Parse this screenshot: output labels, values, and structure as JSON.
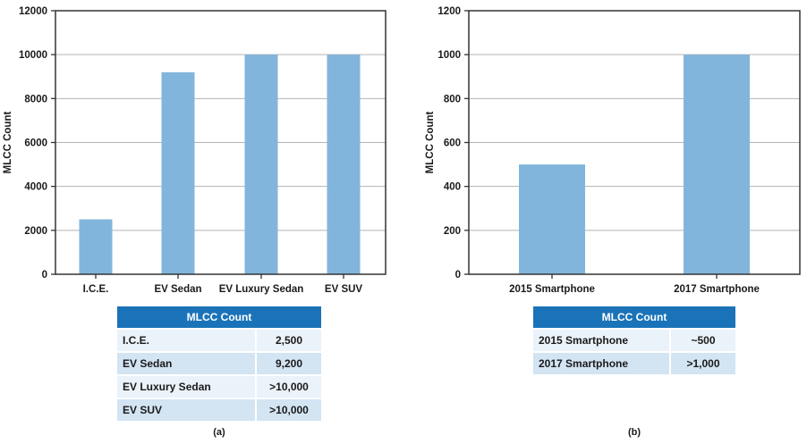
{
  "chart_data": [
    {
      "type": "bar",
      "categories": [
        "I.C.E.",
        "EV Sedan",
        "EV Luxury Sedan",
        "EV SUV"
      ],
      "values": [
        2500,
        9200,
        10000,
        10000
      ],
      "ylabel": "MLCC Count",
      "xlabel": "",
      "ylim": [
        0,
        12000
      ],
      "yticks": [
        "0",
        "2000",
        "4000",
        "6000",
        "8000",
        "10000",
        "12000"
      ],
      "grid": true,
      "color": "#82b5dc",
      "table": {
        "header": "MLCC Count",
        "rows": [
          {
            "label": "I.C.E.",
            "value": "2,500"
          },
          {
            "label": "EV Sedan",
            "value": "9,200"
          },
          {
            "label": "EV Luxury Sedan",
            "value": ">10,000"
          },
          {
            "label": "EV SUV",
            "value": ">10,000"
          }
        ]
      },
      "caption": "(a)"
    },
    {
      "type": "bar",
      "categories": [
        "2015 Smartphone",
        "2017 Smartphone"
      ],
      "values": [
        500,
        1000
      ],
      "ylabel": "MLCC Count",
      "xlabel": "",
      "ylim": [
        0,
        1200
      ],
      "yticks": [
        "0",
        "200",
        "400",
        "600",
        "800",
        "1000",
        "1200"
      ],
      "grid": true,
      "color": "#82b5dc",
      "table": {
        "header": "MLCC Count",
        "rows": [
          {
            "label": "2015 Smartphone",
            "value": "~500"
          },
          {
            "label": "2017 Smartphone",
            "value": ">1,000"
          }
        ]
      },
      "caption": "(b)"
    }
  ],
  "colors": {
    "bar": "#82b5dc",
    "table_header": "#1a73b9",
    "row_light": "#eaf2fa",
    "row_dark": "#d3e4f3"
  }
}
